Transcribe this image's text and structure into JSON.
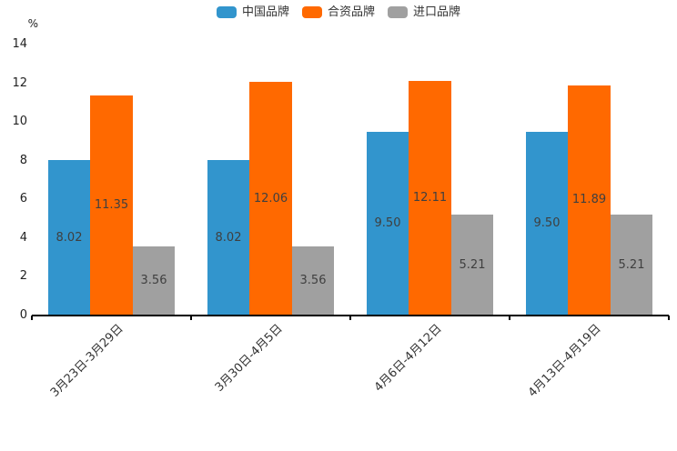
{
  "chart_data": {
    "type": "bar",
    "categories": [
      "3月23日-3月29日",
      "3月30日-4月5日",
      "4月6日-4月12日",
      "4月13日-4月19日"
    ],
    "series": [
      {
        "name": "中国品牌",
        "color": "#3295cd",
        "values": [
          8.02,
          8.02,
          9.5,
          9.5
        ],
        "labels": [
          "8.02",
          "8.02",
          "9.50",
          "9.50"
        ]
      },
      {
        "name": "合资品牌",
        "color": "#ff6900",
        "values": [
          11.35,
          12.06,
          12.11,
          11.89
        ],
        "labels": [
          "11.35",
          "12.06",
          "12.11",
          "11.89"
        ]
      },
      {
        "name": "进口品牌",
        "color": "#a0a0a0",
        "values": [
          3.56,
          3.56,
          5.21,
          5.21
        ],
        "labels": [
          "3.56",
          "3.56",
          "5.21",
          "5.21"
        ]
      }
    ],
    "title": "",
    "xlabel": "",
    "ylabel": "%",
    "ylim": [
      0,
      14
    ],
    "yticks": [
      0,
      2,
      4,
      6,
      8,
      10,
      12,
      14
    ],
    "grid": false,
    "legend_position": "top-center",
    "value_labels": "centered-inside-bars",
    "x_tick_style": "group-boundary-ticks",
    "x_label_rotation_deg": 45,
    "colors": {
      "axis_line": "#000000",
      "tick_label": "#222222",
      "x_label": "#333333",
      "value_label": "#3f3f3f",
      "background": "#ffffff"
    }
  }
}
